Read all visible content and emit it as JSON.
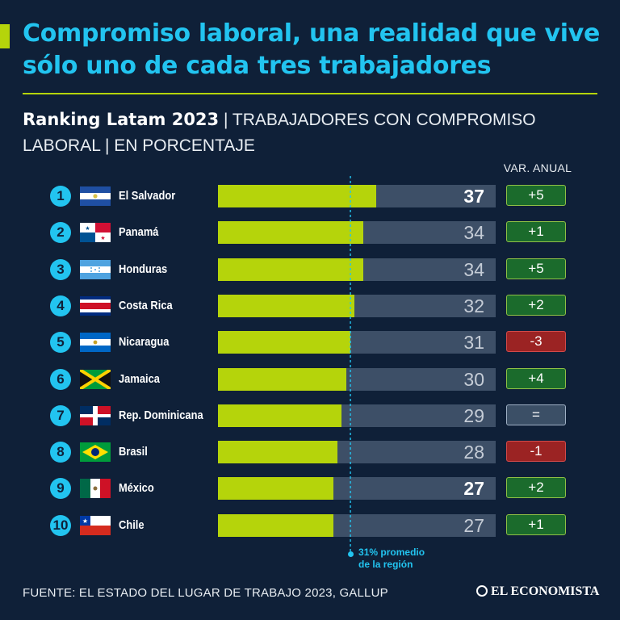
{
  "headline": "Compromiso laboral, una realidad que vive sólo uno de cada tres trabajadores",
  "subtitle": {
    "strong": "Ranking Latam 2023",
    "rest_line1": "TRABAJADORES CON COMPROMISO",
    "rest_line2": "LABORAL",
    "unit": "EN PORCENTAJE"
  },
  "var_header": "VAR. ANUAL",
  "average": {
    "value": 31,
    "label_line1": "31% promedio",
    "label_line2": "de la región"
  },
  "source": "FUENTE: EL ESTADO DEL LUGAR DE TRABAJO 2023, GALLUP",
  "brand": "EL ECONOMISTA",
  "colors": {
    "background": "#0f2038",
    "accent_green": "#b5d40b",
    "accent_cyan": "#22c4f0",
    "bar_track": "#3d4f67",
    "positive": "#1b6b2c",
    "negative": "#9b2323",
    "neutral": "#3b4f66"
  },
  "chart_data": {
    "type": "bar",
    "orientation": "horizontal",
    "xlim": [
      0,
      65
    ],
    "categories": [
      "El Salvador",
      "Panamá",
      "Honduras",
      "Costa Rica",
      "Nicaragua",
      "Jamaica",
      "Rep. Dominicana",
      "Brasil",
      "México",
      "Chile"
    ],
    "rows": [
      {
        "rank": "1",
        "country": "El Salvador",
        "flag": "el-salvador",
        "value": 37,
        "highlight": true,
        "var": "+5",
        "var_type": "pos"
      },
      {
        "rank": "2",
        "country": "Panamá",
        "flag": "panama",
        "value": 34,
        "highlight": false,
        "var": "+1",
        "var_type": "pos"
      },
      {
        "rank": "3",
        "country": "Honduras",
        "flag": "honduras",
        "value": 34,
        "highlight": false,
        "var": "+5",
        "var_type": "pos"
      },
      {
        "rank": "4",
        "country": "Costa Rica",
        "flag": "costa-rica",
        "value": 32,
        "highlight": false,
        "var": "+2",
        "var_type": "pos"
      },
      {
        "rank": "5",
        "country": "Nicaragua",
        "flag": "nicaragua",
        "value": 31,
        "highlight": false,
        "var": "-3",
        "var_type": "neg"
      },
      {
        "rank": "6",
        "country": "Jamaica",
        "flag": "jamaica",
        "value": 30,
        "highlight": false,
        "var": "+4",
        "var_type": "pos"
      },
      {
        "rank": "7",
        "country": "Rep. Dominicana",
        "flag": "dominican-republic",
        "value": 29,
        "highlight": false,
        "var": "=",
        "var_type": "eq"
      },
      {
        "rank": "8",
        "country": "Brasil",
        "flag": "brazil",
        "value": 28,
        "highlight": false,
        "var": "-1",
        "var_type": "neg"
      },
      {
        "rank": "9",
        "country": "México",
        "flag": "mexico",
        "value": 27,
        "highlight": true,
        "var": "+2",
        "var_type": "pos"
      },
      {
        "rank": "10",
        "country": "Chile",
        "flag": "chile",
        "value": 27,
        "highlight": false,
        "var": "+1",
        "var_type": "pos"
      }
    ]
  }
}
